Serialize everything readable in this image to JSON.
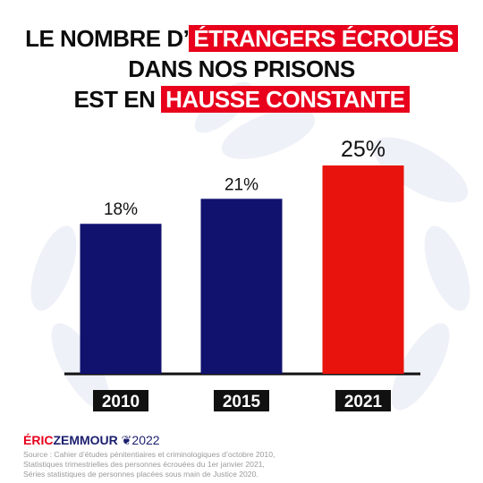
{
  "title": {
    "line1_plain": "LE NOMBRE D’",
    "line1_highlight": "ÉTRANGERS ÉCROUÉS",
    "line2": "DANS NOS PRISONS",
    "line3_plain": "EST EN ",
    "line3_highlight": "HAUSSE CONSTANTE"
  },
  "chart_data": {
    "type": "bar",
    "categories": [
      "2010",
      "2015",
      "2021"
    ],
    "values": [
      18,
      21,
      25
    ],
    "value_labels": [
      "18%",
      "21%",
      "25%"
    ],
    "bar_colors": [
      "#10126e",
      "#10126e",
      "#e8130c"
    ],
    "ylim": [
      0,
      30
    ],
    "grid": false,
    "legend": "none"
  },
  "colors": {
    "navy": "#10126e",
    "red": "#e8130c",
    "highlight_red": "#e8001c",
    "text": "#0d0d0d"
  },
  "footer": {
    "brand_first": "ÉRIC",
    "brand_last": "ZEMMOUR",
    "brand_year": "2022",
    "source_lines": [
      "Source : Cahier d’études pénitentiaires et criminologiques d’octobre 2010,",
      "Statistiques trimestrielles des personnes écrouées du 1er janvier 2021,",
      "Séries statistiques de personnes placées sous main de Justice 2020."
    ]
  }
}
